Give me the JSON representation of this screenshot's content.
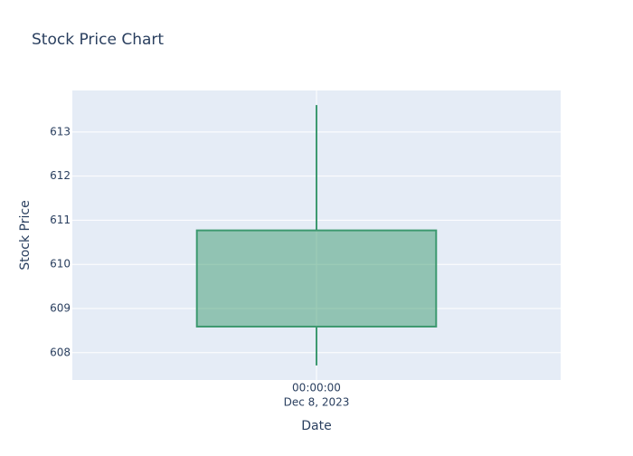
{
  "chart_data": {
    "type": "candlestick",
    "title": "Stock Price Chart",
    "x_label": "Date",
    "y_label": "Stock Price",
    "x": [
      "2023-12-08T00:00:00"
    ],
    "x_tick_labels": [
      [
        "00:00:00",
        "Dec 8, 2023"
      ]
    ],
    "open": [
      608.59
    ],
    "high": [
      613.61
    ],
    "low": [
      607.71
    ],
    "close": [
      610.77
    ],
    "color": "#3d9970",
    "ylim": [
      607.38,
      613.94
    ],
    "yticks": [
      608,
      609,
      610,
      611,
      612,
      613
    ],
    "grid": true
  }
}
